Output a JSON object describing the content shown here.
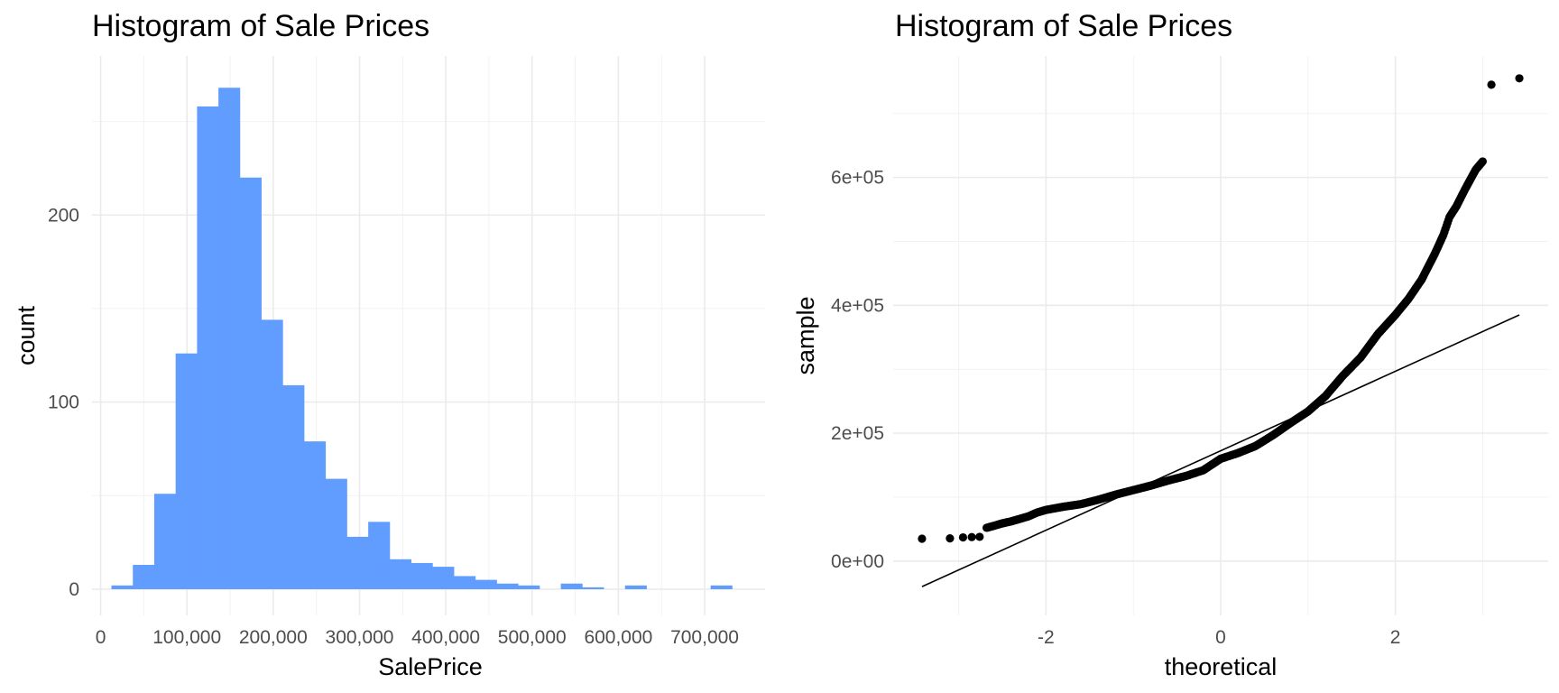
{
  "chart_data": [
    {
      "type": "bar",
      "title": "Histogram of Sale Prices",
      "xlabel": "SalePrice",
      "ylabel": "count",
      "xlim": [
        -10000,
        770000
      ],
      "ylim": [
        -14,
        285
      ],
      "x_ticks": [
        0,
        100000,
        200000,
        300000,
        400000,
        500000,
        600000,
        700000
      ],
      "x_tick_labels": [
        "0",
        "100,000",
        "200,000",
        "300,000",
        "400,000",
        "500,000",
        "600,000",
        "700,000"
      ],
      "y_ticks": [
        0,
        100,
        200
      ],
      "y_tick_labels": [
        "0",
        "100",
        "200"
      ],
      "bin_width": 24800,
      "bins": [
        {
          "x": 24900,
          "count": 2
        },
        {
          "x": 49700,
          "count": 13
        },
        {
          "x": 74500,
          "count": 51
        },
        {
          "x": 99300,
          "count": 126
        },
        {
          "x": 124100,
          "count": 258
        },
        {
          "x": 148900,
          "count": 268
        },
        {
          "x": 173700,
          "count": 220
        },
        {
          "x": 198500,
          "count": 144
        },
        {
          "x": 223300,
          "count": 109
        },
        {
          "x": 248100,
          "count": 79
        },
        {
          "x": 272900,
          "count": 59
        },
        {
          "x": 297700,
          "count": 28
        },
        {
          "x": 322500,
          "count": 36
        },
        {
          "x": 347300,
          "count": 16
        },
        {
          "x": 372100,
          "count": 14
        },
        {
          "x": 396900,
          "count": 12
        },
        {
          "x": 421700,
          "count": 7
        },
        {
          "x": 446500,
          "count": 5
        },
        {
          "x": 471300,
          "count": 3
        },
        {
          "x": 496100,
          "count": 2
        },
        {
          "x": 520900,
          "count": 0
        },
        {
          "x": 545700,
          "count": 3
        },
        {
          "x": 570500,
          "count": 1
        },
        {
          "x": 595300,
          "count": 0
        },
        {
          "x": 620100,
          "count": 2
        },
        {
          "x": 644900,
          "count": 0
        },
        {
          "x": 669700,
          "count": 0
        },
        {
          "x": 694500,
          "count": 0
        },
        {
          "x": 719300,
          "count": 2
        }
      ],
      "bar_color": "#619CFF",
      "grid": true
    },
    {
      "type": "scatter",
      "title": "Histogram of Sale Prices",
      "xlabel": "theoretical",
      "ylabel": "sample",
      "xlim": [
        -3.75,
        3.75
      ],
      "ylim": [
        -85000,
        790000
      ],
      "x_ticks": [
        -2,
        0,
        2
      ],
      "x_tick_labels": [
        "-2",
        "0",
        "2"
      ],
      "y_ticks": [
        0,
        200000,
        400000,
        600000
      ],
      "y_tick_labels": [
        "0e+00",
        "2e+05",
        "4e+05",
        "6e+05"
      ],
      "qq_points": [
        {
          "x": -3.42,
          "y": 35000
        },
        {
          "x": -3.1,
          "y": 35500
        },
        {
          "x": -2.95,
          "y": 37000
        },
        {
          "x": -2.85,
          "y": 37500
        },
        {
          "x": -2.76,
          "y": 37900
        },
        {
          "x": -2.68,
          "y": 52000
        },
        {
          "x": -2.6,
          "y": 55000
        },
        {
          "x": -2.5,
          "y": 59000
        },
        {
          "x": -2.4,
          "y": 62000
        },
        {
          "x": -2.3,
          "y": 66000
        },
        {
          "x": -2.2,
          "y": 70000
        },
        {
          "x": -2.1,
          "y": 76000
        },
        {
          "x": -2.0,
          "y": 80000
        },
        {
          "x": -1.8,
          "y": 85000
        },
        {
          "x": -1.6,
          "y": 89000
        },
        {
          "x": -1.4,
          "y": 96000
        },
        {
          "x": -1.2,
          "y": 104000
        },
        {
          "x": -1.0,
          "y": 111000
        },
        {
          "x": -0.8,
          "y": 118000
        },
        {
          "x": -0.6,
          "y": 126000
        },
        {
          "x": -0.4,
          "y": 133000
        },
        {
          "x": -0.2,
          "y": 142000
        },
        {
          "x": 0.0,
          "y": 160000
        },
        {
          "x": 0.2,
          "y": 169000
        },
        {
          "x": 0.4,
          "y": 180000
        },
        {
          "x": 0.6,
          "y": 197000
        },
        {
          "x": 0.8,
          "y": 216000
        },
        {
          "x": 1.0,
          "y": 234000
        },
        {
          "x": 1.2,
          "y": 258000
        },
        {
          "x": 1.4,
          "y": 290000
        },
        {
          "x": 1.6,
          "y": 318000
        },
        {
          "x": 1.8,
          "y": 355000
        },
        {
          "x": 2.0,
          "y": 385000
        },
        {
          "x": 2.15,
          "y": 410000
        },
        {
          "x": 2.3,
          "y": 440000
        },
        {
          "x": 2.45,
          "y": 480000
        },
        {
          "x": 2.55,
          "y": 510000
        },
        {
          "x": 2.62,
          "y": 538000
        },
        {
          "x": 2.7,
          "y": 555000
        },
        {
          "x": 2.8,
          "y": 582000
        },
        {
          "x": 2.92,
          "y": 612000
        },
        {
          "x": 3.0,
          "y": 625000
        },
        {
          "x": 3.1,
          "y": 745000
        },
        {
          "x": 3.42,
          "y": 755000
        }
      ],
      "reference_line": [
        {
          "x": -3.42,
          "y": -40000
        },
        {
          "x": 3.42,
          "y": 385000
        }
      ],
      "point_color": "#000000",
      "grid": true
    }
  ]
}
